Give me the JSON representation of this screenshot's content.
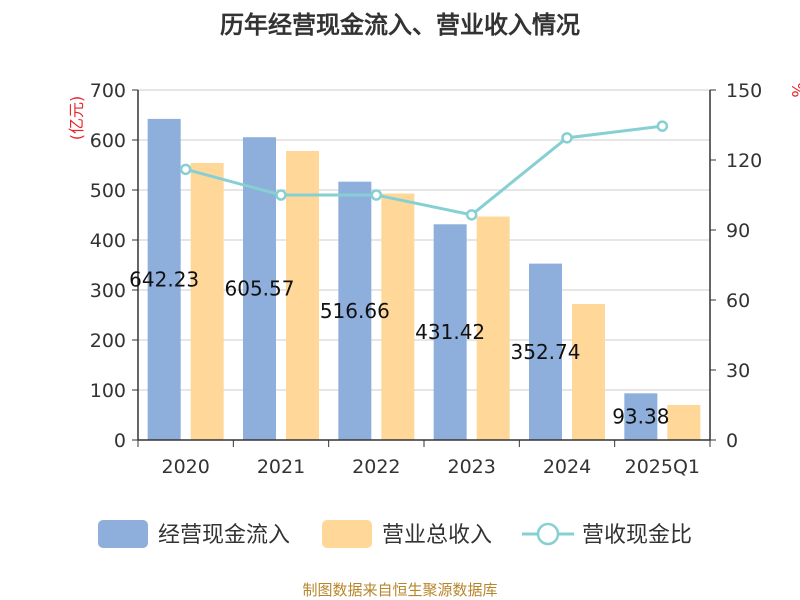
{
  "chart_data": {
    "type": "bar",
    "title": "历年经营现金流入、营业收入情况",
    "categories": [
      "2020",
      "2021",
      "2022",
      "2023",
      "2024",
      "2025Q1"
    ],
    "series": [
      {
        "name": "经营现金流入",
        "type": "bar",
        "axis": "left",
        "color": "#8eaedb",
        "values": [
          642.23,
          605.57,
          516.66,
          431.42,
          352.74,
          93.38
        ],
        "labels": [
          "642.23",
          "605.57",
          "516.66",
          "431.42",
          "352.74",
          "93.38"
        ]
      },
      {
        "name": "营业总收入",
        "type": "bar",
        "axis": "left",
        "color": "#ffd899",
        "values": [
          554,
          578,
          493,
          447,
          272,
          70
        ]
      },
      {
        "name": "营收现金比",
        "type": "line",
        "axis": "right",
        "color": "#86d0d4",
        "values": [
          116,
          105,
          105,
          96.5,
          129.5,
          134.5
        ]
      }
    ],
    "y_left": {
      "label": "(亿元)",
      "ylim": [
        0,
        700
      ],
      "ticks": [
        "0",
        "100",
        "200",
        "300",
        "400",
        "500",
        "600",
        "700"
      ]
    },
    "y_right": {
      "label": "%",
      "ylim": [
        0,
        150
      ],
      "ticks": [
        "0",
        "30",
        "60",
        "90",
        "120",
        "150"
      ]
    },
    "grid": true,
    "legend_position": "bottom",
    "source": "制图数据来自恒生聚源数据库"
  }
}
